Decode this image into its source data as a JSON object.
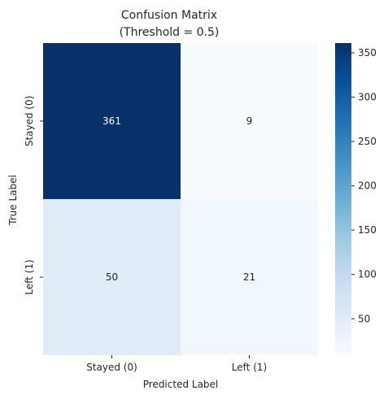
{
  "chart_data": {
    "type": "heatmap",
    "title": "Confusion Matrix\n(Threshold = 0.5)",
    "title_lines": [
      "Confusion Matrix",
      "(Threshold = 0.5)"
    ],
    "xlabel": "Predicted Label",
    "ylabel": "True Label",
    "x_categories": [
      "Stayed (0)",
      "Left (1)"
    ],
    "y_categories": [
      "Stayed (0)",
      "Left (1)"
    ],
    "values": [
      [
        361,
        9
      ],
      [
        50,
        21
      ]
    ],
    "colormap": "Blues",
    "colorbar": {
      "range": [
        9,
        361
      ],
      "ticks": [
        50,
        100,
        150,
        200,
        250,
        300,
        350
      ]
    },
    "colors": {
      "low": "#f7fbff",
      "high": "#08306b"
    },
    "grid": false,
    "annotations": true
  }
}
